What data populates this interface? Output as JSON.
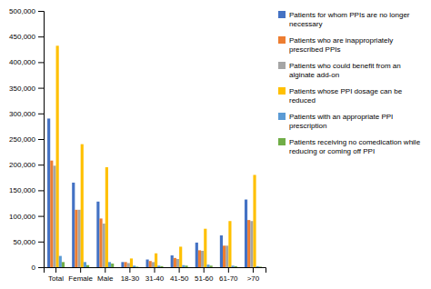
{
  "chart_data": {
    "type": "bar",
    "categories": [
      "Total",
      "Female",
      "Male",
      "18-30",
      "31-40",
      "41-50",
      "51-60",
      "61-70",
      ">70"
    ],
    "series": [
      {
        "name": "Patients for whom PPIs are no longer necessary",
        "color": "#4472C4",
        "values": [
          290000,
          165000,
          128000,
          10000,
          15000,
          23000,
          48000,
          62000,
          132000
        ]
      },
      {
        "name": "Patients who are inappropriately prescribed PPIs",
        "color": "#ED7D31",
        "values": [
          208000,
          112000,
          95000,
          10000,
          12000,
          18000,
          33000,
          42000,
          92000
        ]
      },
      {
        "name": "Patients who could benefit from an alginate add-on",
        "color": "#A5A5A5",
        "values": [
          198000,
          112000,
          85000,
          8000,
          10000,
          16000,
          32000,
          42000,
          90000
        ]
      },
      {
        "name": "Patients whose PPI dosage can be reduced",
        "color": "#FFC000",
        "values": [
          432000,
          240000,
          195000,
          17000,
          27000,
          40000,
          75000,
          90000,
          180000
        ]
      },
      {
        "name": "Patients with an appropriate PPI prescription",
        "color": "#5B9BD5",
        "values": [
          22000,
          10000,
          10000,
          3000,
          3000,
          4000,
          5000,
          3000,
          2000
        ]
      },
      {
        "name": "Patients receiving no comedication while reducing or coming off PPI",
        "color": "#70AD47",
        "values": [
          10000,
          4000,
          7000,
          1000,
          2000,
          3000,
          3000,
          2000,
          1000
        ]
      }
    ],
    "ylim": [
      0,
      500000
    ],
    "yticks": [
      0,
      {
        "value": 50000,
        "label": "50,000"
      },
      {
        "value": 100000,
        "label": "100,000"
      },
      {
        "value": 150000,
        "label": "150,000"
      },
      {
        "value": 200000,
        "label": "200,000"
      },
      {
        "value": 250000,
        "label": "250,000"
      },
      {
        "value": 300000,
        "label": "300,000"
      },
      {
        "value": 350000,
        "label": "350,000"
      },
      {
        "value": 400000,
        "label": "400,000"
      },
      {
        "value": 450000,
        "label": "450,000"
      },
      {
        "value": 500000,
        "label": "500,000"
      }
    ],
    "grid": false,
    "legend": "right"
  }
}
